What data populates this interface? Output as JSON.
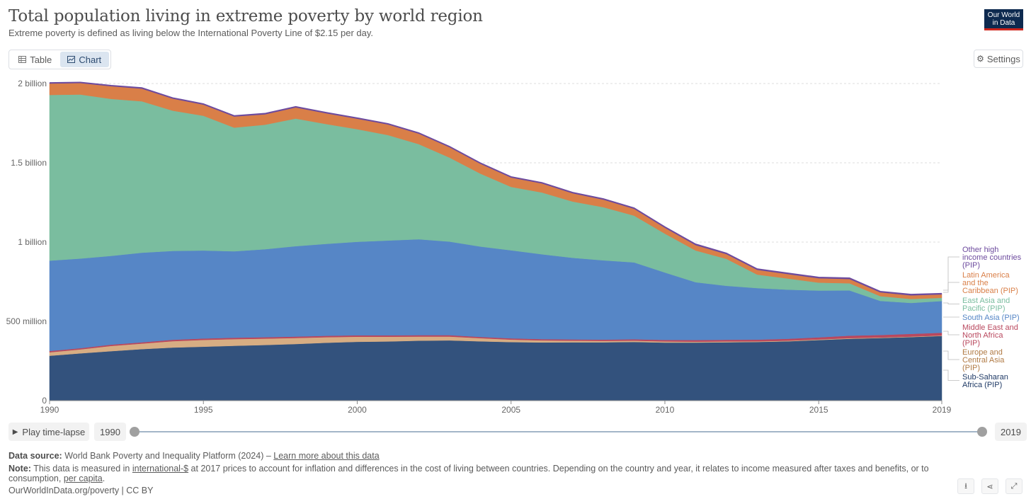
{
  "header": {
    "title": "Total population living in extreme poverty by world region",
    "subtitle": "Extreme poverty is defined as living below the International Poverty Line of $2.15 per day.",
    "logo_line1": "Our World",
    "logo_line2": "in Data"
  },
  "tabs": {
    "table_label": "Table",
    "chart_label": "Chart"
  },
  "settings_label": "Settings",
  "timeline": {
    "play_label": "Play time-lapse",
    "start_year": "1990",
    "end_year": "2019"
  },
  "footer": {
    "source_label": "Data source:",
    "source_text": "World Bank Poverty and Inequality Platform (2024) – ",
    "source_link": "Learn more about this data",
    "note_label": "Note:",
    "note_text1": "This data is measured in ",
    "note_link1": "international-$",
    "note_text2": " at 2017 prices to account for inflation and differences in the cost of living between countries. Depending on the country and year, it relates to income measured after taxes and benefits, or to consumption, ",
    "note_link2": "per capita",
    "note_text3": ".",
    "url_text": "OurWorldInData.org/poverty | CC BY"
  },
  "colors": {
    "sub_saharan": "#33527d",
    "europe": "#d7ad83",
    "mena": "#b9485e",
    "south_asia": "#5686c6",
    "east_asia": "#7abd9f",
    "latam": "#d97f48",
    "other_high": "#6d4b9e"
  },
  "chart_data": {
    "type": "area",
    "stacked": true,
    "title": "Total population living in extreme poverty by world region",
    "x": [
      1990,
      1991,
      1992,
      1993,
      1994,
      1995,
      1996,
      1997,
      1998,
      1999,
      2000,
      2001,
      2002,
      2003,
      2004,
      2005,
      2006,
      2007,
      2008,
      2009,
      2010,
      2011,
      2012,
      2013,
      2014,
      2015,
      2016,
      2017,
      2018,
      2019
    ],
    "y_ticks": [
      0,
      500000000,
      1000000000,
      1500000000,
      2000000000
    ],
    "y_tick_labels": [
      "0",
      "500 million",
      "1 billion",
      "1.5 billion",
      "2 billion"
    ],
    "x_ticks": [
      1990,
      1995,
      2000,
      2005,
      2010,
      2015,
      2019
    ],
    "ylim": [
      0,
      2000000000
    ],
    "series": [
      {
        "name": "Sub-Saharan Africa (PIP)",
        "legend_line1": "Sub-Saharan",
        "legend_line2": "Africa (PIP)",
        "color_key": "sub_saharan",
        "values": [
          283,
          298,
          312,
          325,
          335,
          340,
          346,
          351,
          357,
          365,
          371,
          373,
          378,
          380,
          374,
          369,
          367,
          368,
          368,
          370,
          366,
          366,
          368,
          370,
          374,
          382,
          390,
          395,
          401,
          408
        ]
      },
      {
        "name": "Europe and Central Asia (PIP)",
        "legend_line1": "Europe and",
        "legend_line2": "Central Asia",
        "legend_line3": "(PIP)",
        "color_key": "europe",
        "values": [
          22,
          25,
          33,
          35,
          40,
          43,
          42,
          40,
          38,
          35,
          32,
          30,
          26,
          24,
          20,
          16,
          13,
          10,
          9,
          8,
          7,
          6,
          5,
          4,
          4,
          4,
          4,
          3,
          3,
          3
        ]
      },
      {
        "name": "Middle East and North Africa (PIP)",
        "legend_line1": "Middle East and",
        "legend_line2": "North Africa",
        "legend_line3": "(PIP)",
        "color_key": "mena",
        "values": [
          8,
          8,
          8,
          8,
          9,
          9,
          9,
          9,
          9,
          9,
          9,
          9,
          9,
          9,
          8,
          8,
          8,
          8,
          8,
          9,
          10,
          10,
          11,
          11,
          12,
          13,
          16,
          16,
          17,
          17
        ]
      },
      {
        "name": "South Asia (PIP)",
        "legend_line1": "South Asia (PIP)",
        "color_key": "south_asia",
        "values": [
          570,
          565,
          560,
          565,
          560,
          555,
          545,
          555,
          570,
          580,
          590,
          598,
          605,
          590,
          570,
          555,
          535,
          515,
          500,
          485,
          425,
          365,
          340,
          325,
          310,
          295,
          285,
          215,
          195,
          200
        ]
      },
      {
        "name": "East Asia and Pacific (PIP)",
        "legend_line1": "East Asia and",
        "legend_line2": "Pacific (PIP)",
        "color_key": "east_asia",
        "values": [
          1045,
          1035,
          990,
          955,
          885,
          850,
          780,
          785,
          805,
          755,
          710,
          665,
          600,
          530,
          460,
          400,
          390,
          355,
          335,
          295,
          245,
          200,
          170,
          85,
          70,
          50,
          45,
          30,
          25,
          20
        ]
      },
      {
        "name": "Latin America and the Caribbean (PIP)",
        "legend_line1": "Latin America",
        "legend_line2": "and the",
        "legend_line3": "Caribbean (PIP)",
        "color_key": "latam",
        "values": [
          72,
          72,
          80,
          80,
          76,
          70,
          70,
          66,
          70,
          68,
          66,
          67,
          66,
          65,
          62,
          59,
          57,
          52,
          48,
          43,
          37,
          34,
          30,
          30,
          28,
          28,
          27,
          24,
          23,
          22
        ]
      },
      {
        "name": "Other high income countries (PIP)",
        "legend_line1": "Other high",
        "legend_line2": "income countries",
        "legend_line3": "(PIP)",
        "color_key": "other_high",
        "values": [
          5,
          5,
          5,
          5,
          5,
          5,
          5,
          5,
          5,
          5,
          5,
          5,
          5,
          5,
          5,
          5,
          5,
          5,
          5,
          5,
          6,
          6,
          6,
          6,
          6,
          6,
          6,
          6,
          6,
          6
        ]
      }
    ],
    "value_unit": "million",
    "source_note": ""
  }
}
